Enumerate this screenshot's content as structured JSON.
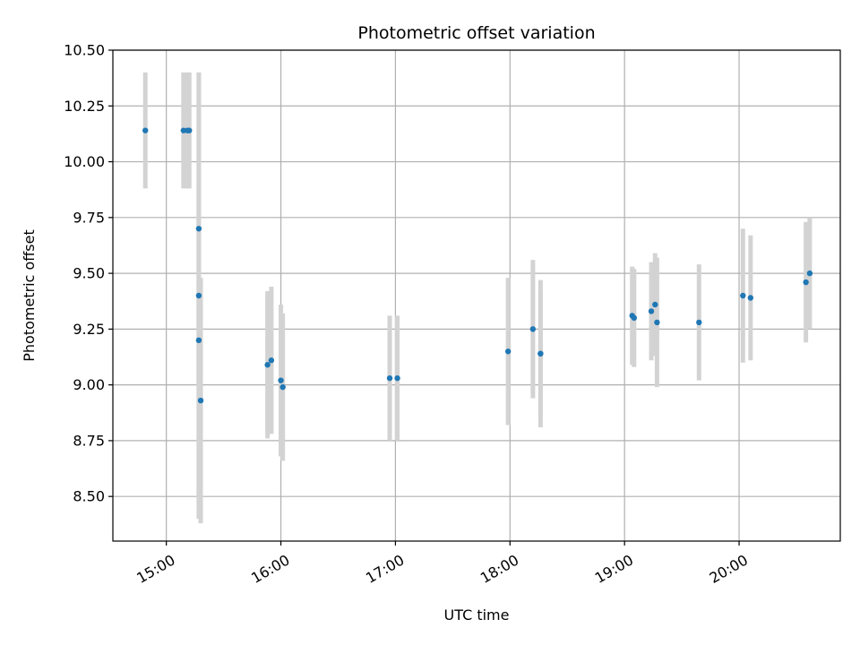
{
  "chart_data": {
    "type": "scatter",
    "title": "Photometric offset variation",
    "xlabel": "UTC time",
    "ylabel": "Photometric offset",
    "xlim": [
      "14:32",
      "20:53"
    ],
    "ylim": [
      8.3,
      10.5
    ],
    "grid": true,
    "legend": "none",
    "x_ticks": [
      "15:00",
      "16:00",
      "17:00",
      "18:00",
      "19:00",
      "20:00"
    ],
    "y_ticks": [
      "8.50",
      "8.75",
      "9.00",
      "9.25",
      "9.50",
      "9.75",
      "10.00",
      "10.25",
      "10.50"
    ],
    "colors": {
      "points": "#1f77b4",
      "errorbars": "#d3d3d3",
      "grid": "#b0b0b0"
    },
    "points": [
      {
        "x": "14:49",
        "y": 10.14,
        "err": 0.26
      },
      {
        "x": "15:09",
        "y": 10.14,
        "err": 0.26
      },
      {
        "x": "15:11",
        "y": 10.14,
        "err": 0.26
      },
      {
        "x": "15:12",
        "y": 10.14,
        "err": 0.26
      },
      {
        "x": "15:17",
        "y": 9.7,
        "err": 0.7
      },
      {
        "x": "15:17",
        "y": 9.4,
        "err": 1.0
      },
      {
        "x": "15:17",
        "y": 9.2,
        "err": 0.7
      },
      {
        "x": "15:18",
        "y": 8.93,
        "err": 0.55
      },
      {
        "x": "15:53",
        "y": 9.09,
        "err": 0.33
      },
      {
        "x": "15:55",
        "y": 9.11,
        "err": 0.33
      },
      {
        "x": "16:00",
        "y": 9.02,
        "err": 0.34
      },
      {
        "x": "16:01",
        "y": 8.99,
        "err": 0.33
      },
      {
        "x": "16:57",
        "y": 9.03,
        "err": 0.28
      },
      {
        "x": "17:01",
        "y": 9.03,
        "err": 0.28
      },
      {
        "x": "17:59",
        "y": 9.15,
        "err": 0.33
      },
      {
        "x": "18:12",
        "y": 9.25,
        "err": 0.31
      },
      {
        "x": "18:16",
        "y": 9.14,
        "err": 0.33
      },
      {
        "x": "18:16",
        "y": 9.14,
        "err": 0.28
      },
      {
        "x": "19:04",
        "y": 9.31,
        "err": 0.22
      },
      {
        "x": "19:05",
        "y": 9.3,
        "err": 0.22
      },
      {
        "x": "19:14",
        "y": 9.33,
        "err": 0.22
      },
      {
        "x": "19:16",
        "y": 9.36,
        "err": 0.23
      },
      {
        "x": "19:17",
        "y": 9.28,
        "err": 0.29
      },
      {
        "x": "19:39",
        "y": 9.28,
        "err": 0.26
      },
      {
        "x": "20:02",
        "y": 9.4,
        "err": 0.3
      },
      {
        "x": "20:06",
        "y": 9.39,
        "err": 0.28
      },
      {
        "x": "20:35",
        "y": 9.46,
        "err": 0.27
      },
      {
        "x": "20:37",
        "y": 9.5,
        "err": 0.25
      }
    ]
  }
}
